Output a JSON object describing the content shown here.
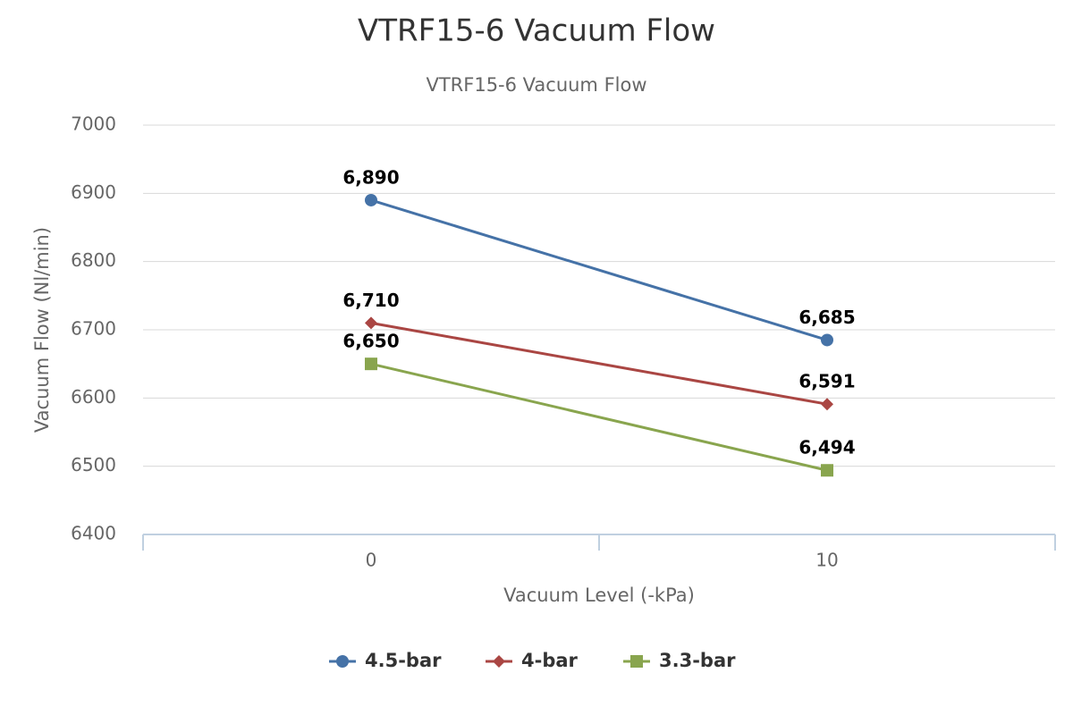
{
  "chart_data": {
    "type": "line",
    "title": "VTRF15-6 Vacuum Flow",
    "subtitle": "VTRF15-6 Vacuum Flow",
    "x_label": "Vacuum Level (-kPa)",
    "y_label": "Vacuum Flow (Nl/min)",
    "categories": [
      "0",
      "10"
    ],
    "series": [
      {
        "name": "4.5-bar",
        "color": "#4572a7",
        "marker": "circle",
        "values": [
          6890,
          6685
        ],
        "value_labels": [
          "6,890",
          "6,685"
        ]
      },
      {
        "name": "4-bar",
        "color": "#aa4643",
        "marker": "diamond",
        "values": [
          6710,
          6591
        ],
        "value_labels": [
          "6,710",
          "6,591"
        ]
      },
      {
        "name": "3.3-bar",
        "color": "#89a54e",
        "marker": "square",
        "values": [
          6650,
          6494
        ],
        "value_labels": [
          "6,650",
          "6,494"
        ]
      }
    ],
    "ylim": [
      6400,
      7000
    ],
    "yticks": [
      6400,
      6500,
      6600,
      6700,
      6800,
      6900,
      7000
    ],
    "grid": true,
    "legend": "bottom"
  }
}
